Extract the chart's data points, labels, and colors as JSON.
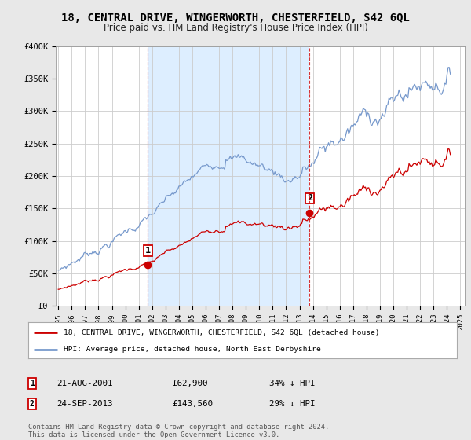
{
  "title": "18, CENTRAL DRIVE, WINGERWORTH, CHESTERFIELD, S42 6QL",
  "subtitle": "Price paid vs. HM Land Registry's House Price Index (HPI)",
  "title_fontsize": 10,
  "subtitle_fontsize": 8.5,
  "bg_color": "#e8e8e8",
  "plot_bg_color": "#ffffff",
  "hpi_color": "#7799cc",
  "price_color": "#cc0000",
  "shade_color": "#ddeeff",
  "sale1_year": 2001.64,
  "sale1_price": 62900,
  "sale1_label": "1",
  "sale2_year": 2013.73,
  "sale2_price": 143560,
  "sale2_label": "2",
  "ylim": [
    0,
    400000
  ],
  "xlim": [
    1994.8,
    2025.3
  ],
  "yticks": [
    0,
    50000,
    100000,
    150000,
    200000,
    250000,
    300000,
    350000,
    400000
  ],
  "legend_entry1": "18, CENTRAL DRIVE, WINGERWORTH, CHESTERFIELD, S42 6QL (detached house)",
  "legend_entry2": "HPI: Average price, detached house, North East Derbyshire",
  "annotation1_date": "21-AUG-2001",
  "annotation1_price": "£62,900",
  "annotation1_hpi": "34% ↓ HPI",
  "annotation2_date": "24-SEP-2013",
  "annotation2_price": "£143,560",
  "annotation2_hpi": "29% ↓ HPI",
  "footer": "Contains HM Land Registry data © Crown copyright and database right 2024.\nThis data is licensed under the Open Government Licence v3.0."
}
